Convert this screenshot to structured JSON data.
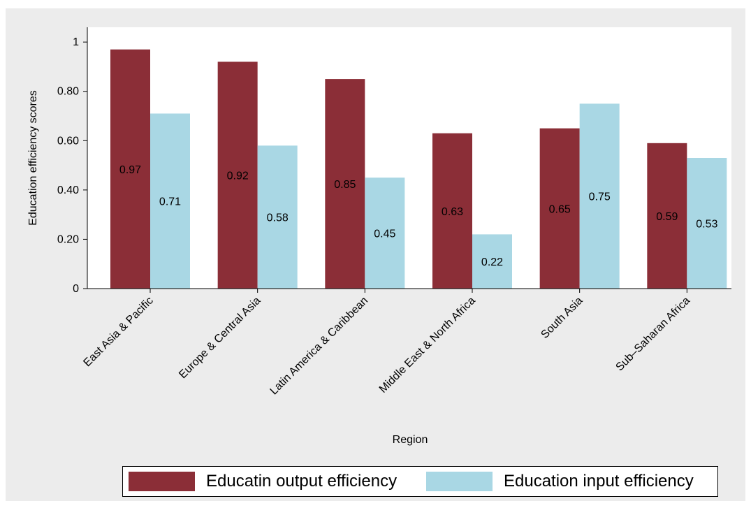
{
  "chart_data": {
    "type": "bar",
    "categories": [
      "East Asia & Pacific",
      "Europe & Central Asia",
      "Latin America & Caribbean",
      "Middle East & North Africa",
      "South Asia",
      "Sub–Saharan Africa"
    ],
    "series": [
      {
        "name": "Educatin output efficiency",
        "color": "#8b2e37",
        "values": [
          0.97,
          0.92,
          0.85,
          0.63,
          0.65,
          0.59
        ]
      },
      {
        "name": "Education input efficiency",
        "color": "#a9d7e4",
        "values": [
          0.71,
          0.58,
          0.45,
          0.22,
          0.75,
          0.53
        ]
      }
    ],
    "data_labels": [
      [
        "0.97",
        "0.92",
        "0.85",
        "0.63",
        "0.65",
        "0.59"
      ],
      [
        "0.71",
        "0.58",
        "0.45",
        "0.22",
        "0.75",
        "0.53"
      ]
    ],
    "xlabel": "Region",
    "ylabel": "Education  efficiency scores",
    "ylim": [
      0,
      1.06
    ],
    "yticks": [
      0,
      0.2,
      0.4,
      0.6,
      0.8,
      1
    ],
    "ytick_labels": [
      "0",
      "0.20",
      "0.40",
      "0.60",
      "0.80",
      "1"
    ],
    "grid": false,
    "legend_position": "bottom"
  }
}
